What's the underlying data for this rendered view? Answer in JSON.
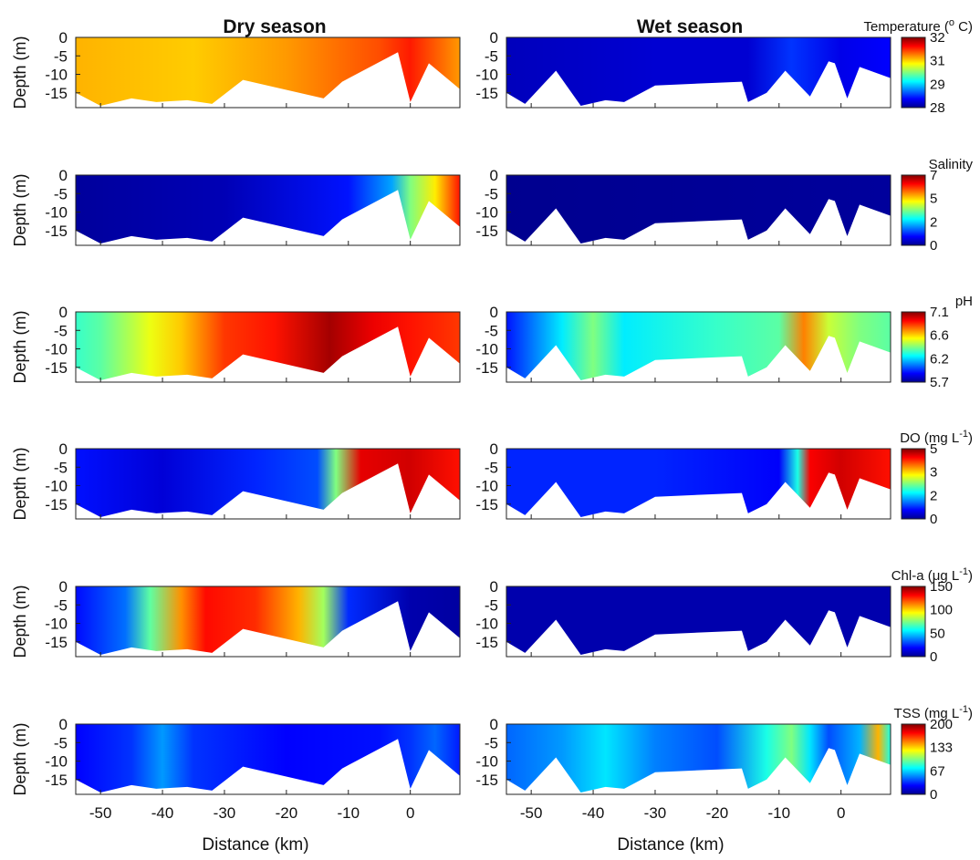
{
  "figure": {
    "columns": [
      "Dry season",
      "Wet season"
    ],
    "x_axis_label": "Distance (km)",
    "y_axis_label": "Depth (m)"
  },
  "colors": {
    "colormap": [
      "#00008f",
      "#0000ff",
      "#0080ff",
      "#00ffff",
      "#80ff80",
      "#ffff00",
      "#ff8000",
      "#ff0000",
      "#800000"
    ],
    "terrain": "#ffffff",
    "axis": "#222222"
  },
  "chart_data": {
    "type": "heatmap",
    "x": {
      "min": -54,
      "max": 8,
      "ticks": [
        -50,
        -40,
        -30,
        -20,
        -10,
        0
      ],
      "tick_labels": [
        "-50",
        "-40",
        "-30",
        "-20",
        "-10",
        "0"
      ],
      "label": "Distance (km)"
    },
    "y": {
      "min": -19,
      "max": 0,
      "ticks": [
        0,
        -5,
        -10,
        -15
      ],
      "tick_labels": [
        "0",
        "-5",
        "-10",
        "-15"
      ],
      "label": "Depth (m)"
    },
    "bathymetry": {
      "dry": [
        [
          -54,
          -15
        ],
        [
          -50,
          -18.5
        ],
        [
          -45,
          -16.5
        ],
        [
          -41,
          -17.5
        ],
        [
          -36,
          -17
        ],
        [
          -32,
          -18
        ],
        [
          -27,
          -11.5
        ],
        [
          -14,
          -16.5
        ],
        [
          -11,
          -12
        ],
        [
          -2,
          -4
        ],
        [
          0,
          -17.5
        ],
        [
          3,
          -7
        ],
        [
          8,
          -14
        ]
      ],
      "wet": [
        [
          -54,
          -15
        ],
        [
          -51,
          -18
        ],
        [
          -46,
          -9
        ],
        [
          -42,
          -18.5
        ],
        [
          -38,
          -17
        ],
        [
          -35,
          -17.5
        ],
        [
          -30,
          -13
        ],
        [
          -16,
          -12
        ],
        [
          -15,
          -17.5
        ],
        [
          -12,
          -15
        ],
        [
          -9,
          -9
        ],
        [
          -5,
          -16
        ],
        [
          -2,
          -6.5
        ],
        [
          -1,
          -7
        ],
        [
          1,
          -16.5
        ],
        [
          3,
          -8
        ],
        [
          8,
          -11
        ]
      ]
    },
    "variables": [
      {
        "name": "Temperature",
        "title": "Temperature (° C)",
        "cbar_ticks": [
          "32",
          "31",
          "29",
          "28"
        ],
        "cbar_range": [
          28,
          32
        ],
        "dry": {
          "x": [
            -54,
            -35,
            -20,
            -5,
            0,
            8
          ],
          "values": [
            30.8,
            30.7,
            30.9,
            31.2,
            31.4,
            30.9
          ]
        },
        "wet": {
          "x": [
            -54,
            -30,
            -15,
            -8,
            0,
            8
          ],
          "values": [
            28.2,
            28.3,
            28.3,
            28.7,
            28.4,
            28.5
          ]
        }
      },
      {
        "name": "Salinity",
        "title": "Salinity",
        "cbar_ticks": [
          "7",
          "5",
          "2",
          "0"
        ],
        "cbar_range": [
          0,
          7
        ],
        "dry": {
          "x": [
            -54,
            -30,
            -10,
            -3,
            0,
            4,
            8
          ],
          "values": [
            0.1,
            0.3,
            1,
            2,
            3.5,
            4.5,
            6
          ]
        },
        "wet": {
          "x": [
            -54,
            8
          ],
          "values": [
            0,
            0.1
          ]
        }
      },
      {
        "name": "pH",
        "title": "pH",
        "cbar_ticks": [
          "7.1",
          "6.6",
          "6.2",
          "5.7"
        ],
        "cbar_range": [
          5.7,
          7.1
        ],
        "dry": {
          "x": [
            -54,
            -50,
            -42,
            -37,
            -30,
            -22,
            -13,
            -6,
            0,
            8
          ],
          "values": [
            6.3,
            6.35,
            6.55,
            6.65,
            6.85,
            6.9,
            7.05,
            6.95,
            6.9,
            6.85
          ]
        },
        "wet": {
          "x": [
            -54,
            -45,
            -40,
            -35,
            -20,
            -10,
            -6,
            -2,
            3,
            8
          ],
          "values": [
            5.9,
            6.2,
            6.4,
            6.2,
            6.3,
            6.35,
            6.75,
            6.5,
            6.4,
            6.35
          ]
        }
      },
      {
        "name": "DO",
        "title": "DO (mg L-1)",
        "cbar_ticks": [
          "5",
          "3",
          "2",
          "0"
        ],
        "cbar_range": [
          0,
          5
        ],
        "dry": {
          "x": [
            -54,
            -40,
            -25,
            -15,
            -12,
            -8,
            0,
            8
          ],
          "values": [
            0.7,
            0.4,
            0.8,
            1.0,
            2.5,
            4.5,
            4.6,
            4.3
          ]
        },
        "wet": {
          "x": [
            -54,
            -30,
            -10,
            -7,
            -5,
            0,
            8
          ],
          "values": [
            0.8,
            0.8,
            0.6,
            2.0,
            4.4,
            4.6,
            4.3
          ]
        }
      },
      {
        "name": "Chl-a",
        "title": "Chl-a (μg L-1)",
        "cbar_ticks": [
          "150",
          "100",
          "50",
          "0"
        ],
        "cbar_range": [
          0,
          150
        ],
        "dry": {
          "x": [
            -54,
            -46,
            -42,
            -37,
            -33,
            -25,
            -18,
            -14,
            -10,
            0,
            8
          ],
          "values": [
            20,
            35,
            70,
            110,
            130,
            125,
            105,
            80,
            25,
            5,
            3
          ]
        },
        "wet": {
          "x": [
            -54,
            8
          ],
          "values": [
            5,
            5
          ]
        }
      },
      {
        "name": "TSS",
        "title": "TSS (mg L-1)",
        "cbar_ticks": [
          "200",
          "133",
          "67",
          "0"
        ],
        "cbar_range": [
          0,
          200
        ],
        "dry": {
          "x": [
            -54,
            -45,
            -40,
            -35,
            -20,
            -5,
            0,
            4,
            8
          ],
          "values": [
            25,
            35,
            55,
            35,
            25,
            28,
            35,
            45,
            30
          ]
        },
        "wet": {
          "x": [
            -54,
            -45,
            -38,
            -30,
            -20,
            -12,
            -8,
            -5,
            -2,
            3,
            6,
            8
          ],
          "values": [
            45,
            55,
            70,
            50,
            40,
            80,
            100,
            70,
            40,
            60,
            140,
            80
          ]
        }
      }
    ]
  }
}
